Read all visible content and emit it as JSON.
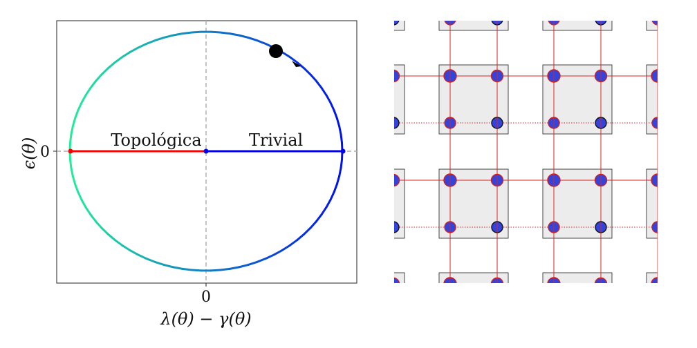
{
  "left_panel": {
    "x_label": "λ(θ) − γ(θ)",
    "y_label": "ϵ(θ)",
    "x_tick": "0",
    "y_tick": "0",
    "phase_labels": {
      "topological": "Topológica",
      "trivial": "Trivial"
    },
    "colors": {
      "topological_segment": "#ff0000",
      "trivial_segment": "#0000ee",
      "curve_start": "#22ee99",
      "curve_end": "#0011ee",
      "axis_dash": "#aaaaaa",
      "marker": "#000000"
    }
  },
  "right_panel": {
    "colors": {
      "cell_fill": "#ececec",
      "cell_border": "#333333",
      "site_fill": "#3344dd",
      "site_outline_red": "#cc2222",
      "site_outline_dark": "#111111",
      "coupling_line": "#dd2222",
      "intra_line": "#222222"
    }
  }
}
